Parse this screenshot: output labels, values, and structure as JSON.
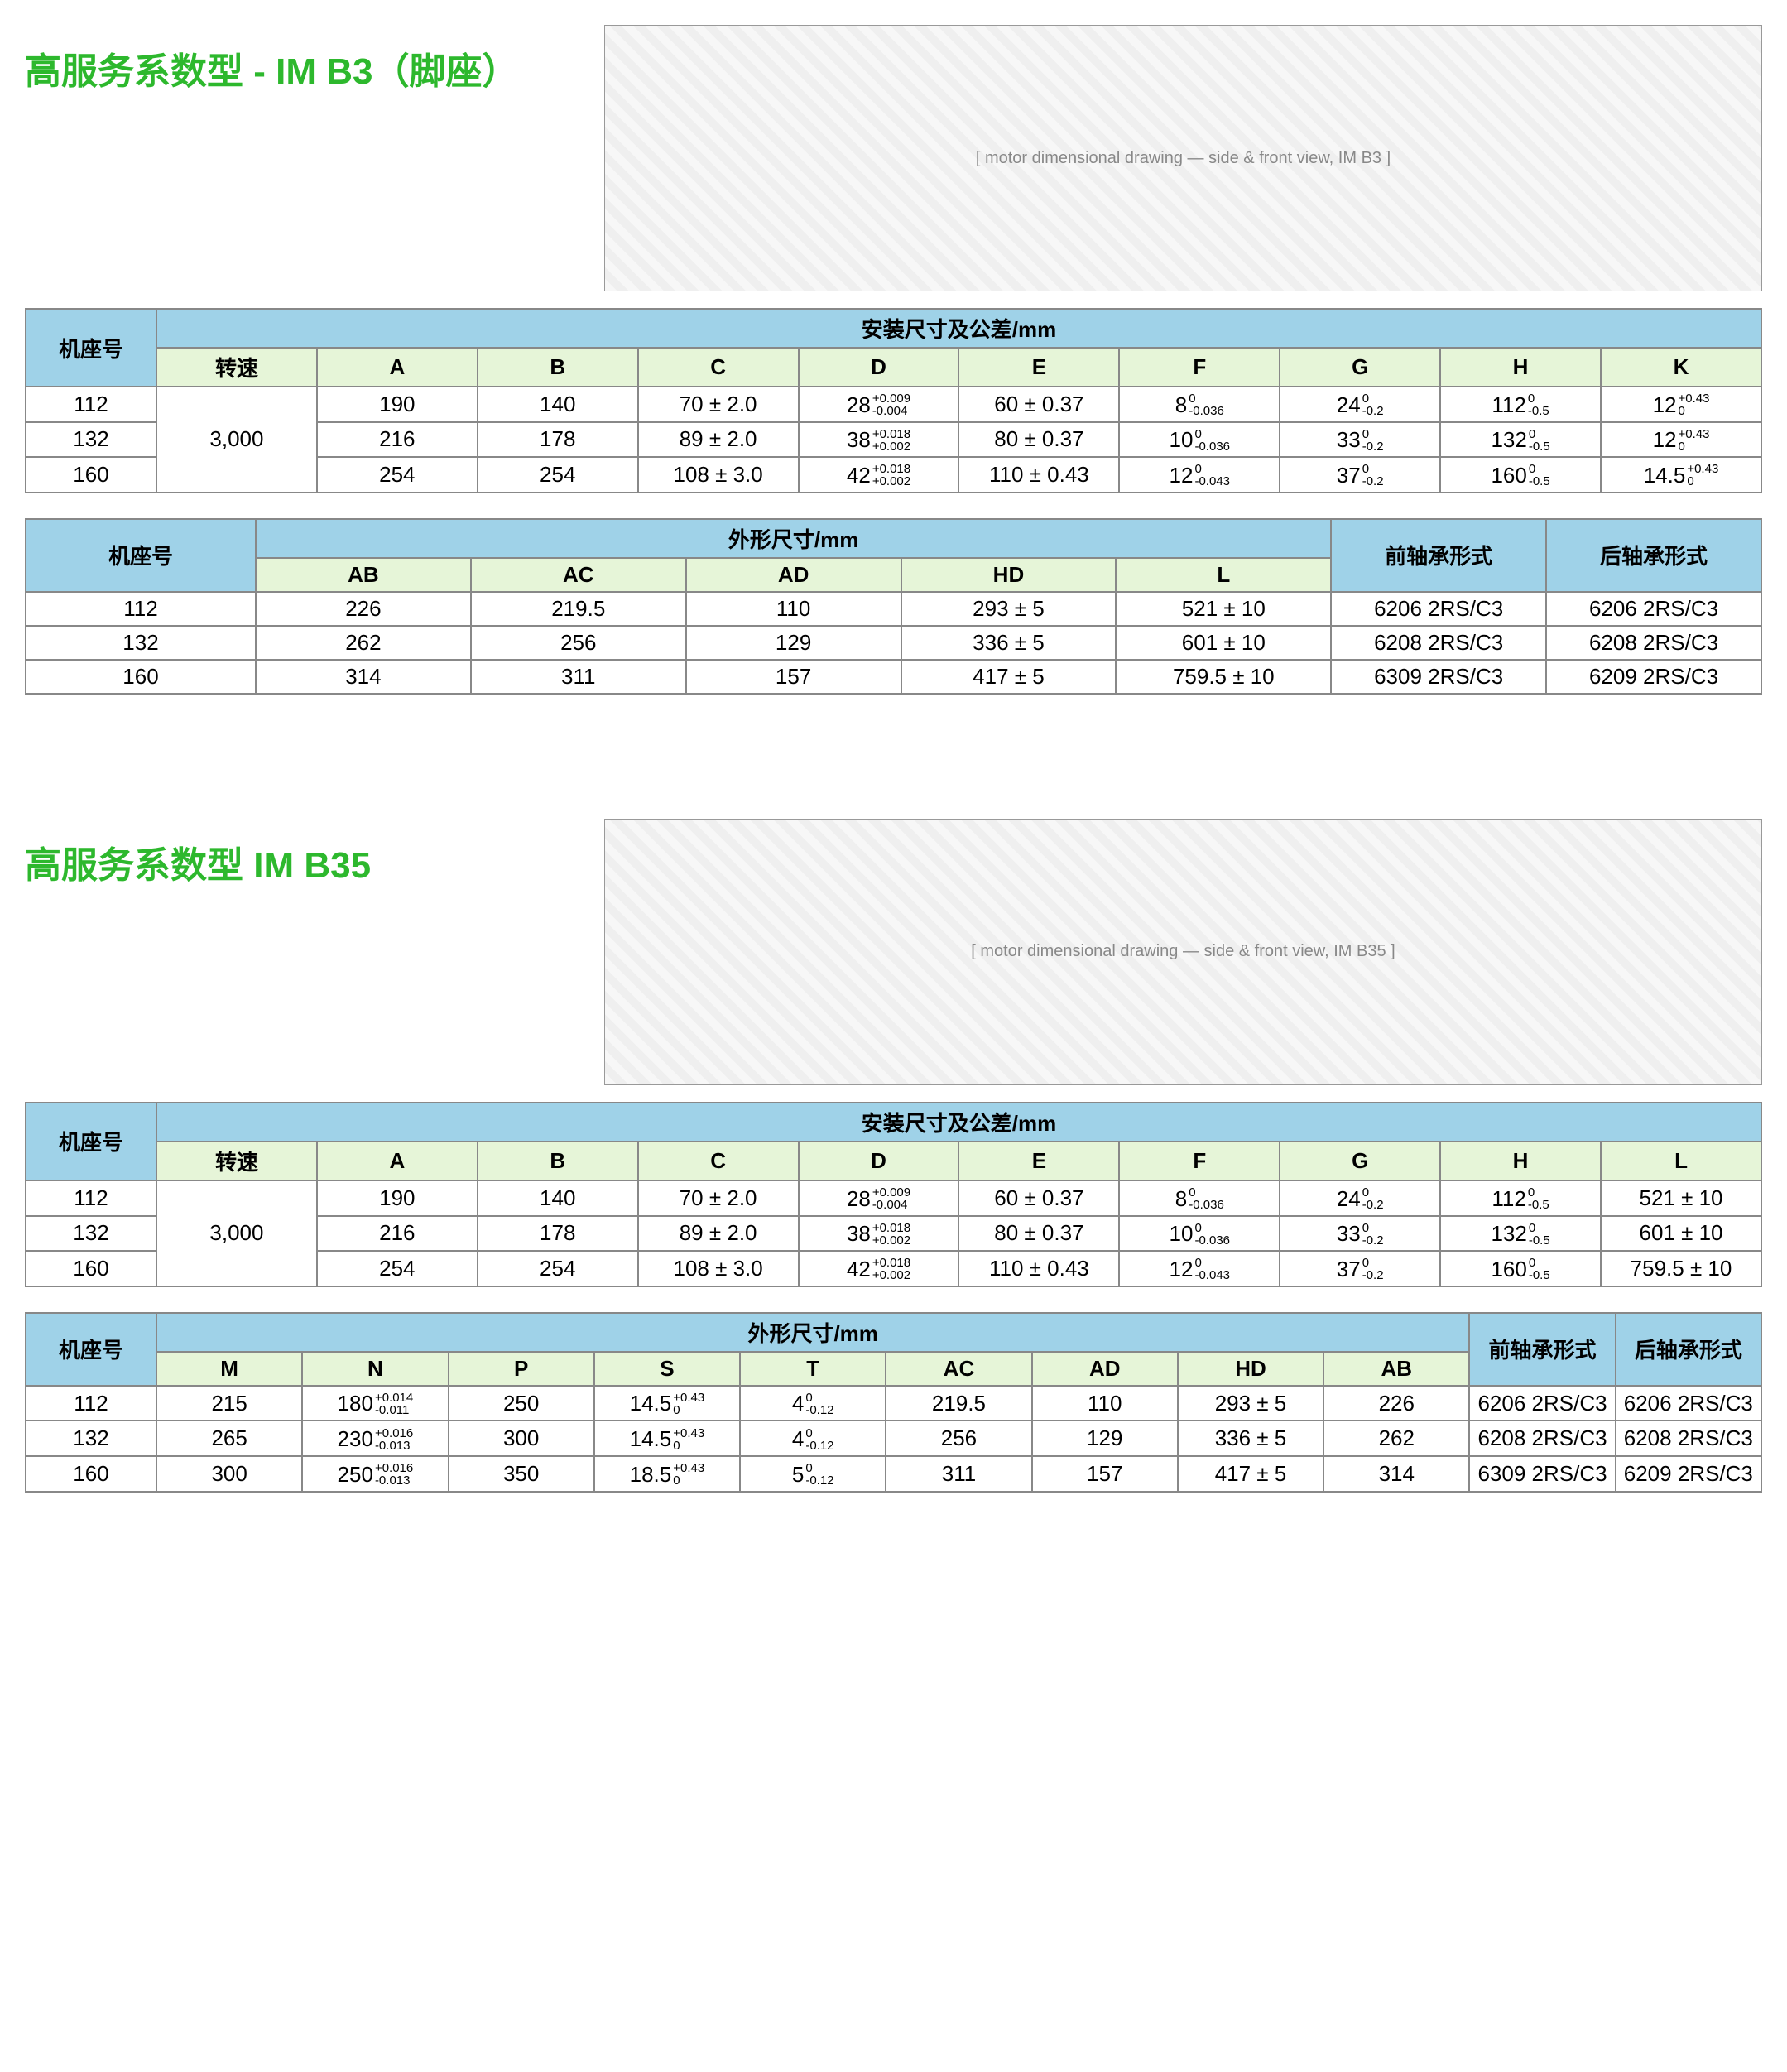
{
  "section1": {
    "title": "高服务系数型 - IM B3（脚座）",
    "diagram_label": "[ motor dimensional drawing — side & front view, IM B3 ]",
    "table1": {
      "group_title": "安装尺寸及公差/mm",
      "row_label": "机座号",
      "cols": [
        "转速",
        "A",
        "B",
        "C",
        "D",
        "E",
        "F",
        "G",
        "H",
        "K"
      ],
      "frames": [
        "112",
        "132",
        "160"
      ],
      "speed": "3,000",
      "rows": [
        {
          "A": "190",
          "B": "140",
          "C": "70 ± 2.0",
          "D": {
            "b": "28",
            "u": "+0.009",
            "l": "-0.004"
          },
          "E": "60 ± 0.37",
          "F": {
            "b": "8",
            "u": "0",
            "l": "-0.036"
          },
          "G": {
            "b": "24",
            "u": "0",
            "l": "-0.2"
          },
          "H": {
            "b": "112",
            "u": "0",
            "l": "-0.5"
          },
          "K": {
            "b": "12",
            "u": "+0.43",
            "l": "0"
          }
        },
        {
          "A": "216",
          "B": "178",
          "C": "89 ± 2.0",
          "D": {
            "b": "38",
            "u": "+0.018",
            "l": "+0.002"
          },
          "E": "80 ± 0.37",
          "F": {
            "b": "10",
            "u": "0",
            "l": "-0.036"
          },
          "G": {
            "b": "33",
            "u": "0",
            "l": "-0.2"
          },
          "H": {
            "b": "132",
            "u": "0",
            "l": "-0.5"
          },
          "K": {
            "b": "12",
            "u": "+0.43",
            "l": "0"
          }
        },
        {
          "A": "254",
          "B": "254",
          "C": "108 ± 3.0",
          "D": {
            "b": "42",
            "u": "+0.018",
            "l": "+0.002"
          },
          "E": "110 ± 0.43",
          "F": {
            "b": "12",
            "u": "0",
            "l": "-0.043"
          },
          "G": {
            "b": "37",
            "u": "0",
            "l": "-0.2"
          },
          "H": {
            "b": "160",
            "u": "0",
            "l": "-0.5"
          },
          "K": {
            "b": "14.5",
            "u": "+0.43",
            "l": "0"
          }
        }
      ]
    },
    "table2": {
      "group_title": "外形尺寸/mm",
      "row_label": "机座号",
      "cols": [
        "AB",
        "AC",
        "AD",
        "HD",
        "L",
        "前轴承形式",
        "后轴承形式"
      ],
      "frames": [
        "112",
        "132",
        "160"
      ],
      "rows": [
        [
          "226",
          "219.5",
          "110",
          "293 ± 5",
          "521 ± 10",
          "6206 2RS/C3",
          "6206 2RS/C3"
        ],
        [
          "262",
          "256",
          "129",
          "336 ± 5",
          "601 ± 10",
          "6208 2RS/C3",
          "6208 2RS/C3"
        ],
        [
          "314",
          "311",
          "157",
          "417 ± 5",
          "759.5 ± 10",
          "6309 2RS/C3",
          "6209 2RS/C3"
        ]
      ]
    }
  },
  "section2": {
    "title": "高服务系数型 IM B35",
    "diagram_label": "[ motor dimensional drawing — side & front view, IM B35 ]",
    "table1": {
      "group_title": "安装尺寸及公差/mm",
      "row_label": "机座号",
      "cols": [
        "转速",
        "A",
        "B",
        "C",
        "D",
        "E",
        "F",
        "G",
        "H",
        "L"
      ],
      "frames": [
        "112",
        "132",
        "160"
      ],
      "speed": "3,000",
      "rows": [
        {
          "A": "190",
          "B": "140",
          "C": "70 ± 2.0",
          "D": {
            "b": "28",
            "u": "+0.009",
            "l": "-0.004"
          },
          "E": "60 ± 0.37",
          "F": {
            "b": "8",
            "u": "0",
            "l": "-0.036"
          },
          "G": {
            "b": "24",
            "u": "0",
            "l": "-0.2"
          },
          "H": {
            "b": "112",
            "u": "0",
            "l": "-0.5"
          },
          "L": "521 ± 10"
        },
        {
          "A": "216",
          "B": "178",
          "C": "89 ± 2.0",
          "D": {
            "b": "38",
            "u": "+0.018",
            "l": "+0.002"
          },
          "E": "80 ± 0.37",
          "F": {
            "b": "10",
            "u": "0",
            "l": "-0.036"
          },
          "G": {
            "b": "33",
            "u": "0",
            "l": "-0.2"
          },
          "H": {
            "b": "132",
            "u": "0",
            "l": "-0.5"
          },
          "L": "601 ± 10"
        },
        {
          "A": "254",
          "B": "254",
          "C": "108 ± 3.0",
          "D": {
            "b": "42",
            "u": "+0.018",
            "l": "+0.002"
          },
          "E": "110 ± 0.43",
          "F": {
            "b": "12",
            "u": "0",
            "l": "-0.043"
          },
          "G": {
            "b": "37",
            "u": "0",
            "l": "-0.2"
          },
          "H": {
            "b": "160",
            "u": "0",
            "l": "-0.5"
          },
          "L": "759.5 ± 10"
        }
      ]
    },
    "table2": {
      "group_title": "外形尺寸/mm",
      "row_label": "机座号",
      "cols": [
        "M",
        "N",
        "P",
        "S",
        "T",
        "AC",
        "AD",
        "HD",
        "AB",
        "前轴承形式",
        "后轴承形式"
      ],
      "frames": [
        "112",
        "132",
        "160"
      ],
      "rows": [
        [
          {
            "t": "215"
          },
          {
            "b": "180",
            "u": "+0.014",
            "l": "-0.011"
          },
          {
            "t": "250"
          },
          {
            "b": "14.5",
            "u": "+0.43",
            "l": "0"
          },
          {
            "b": "4",
            "u": "0",
            "l": "-0.12"
          },
          {
            "t": "219.5"
          },
          {
            "t": "110"
          },
          {
            "t": "293 ± 5"
          },
          {
            "t": "226"
          },
          {
            "t": "6206 2RS/C3"
          },
          {
            "t": "6206 2RS/C3"
          }
        ],
        [
          {
            "t": "265"
          },
          {
            "b": "230",
            "u": "+0.016",
            "l": "-0.013"
          },
          {
            "t": "300"
          },
          {
            "b": "14.5",
            "u": "+0.43",
            "l": "0"
          },
          {
            "b": "4",
            "u": "0",
            "l": "-0.12"
          },
          {
            "t": "256"
          },
          {
            "t": "129"
          },
          {
            "t": "336 ± 5"
          },
          {
            "t": "262"
          },
          {
            "t": "6208 2RS/C3"
          },
          {
            "t": "6208 2RS/C3"
          }
        ],
        [
          {
            "t": "300"
          },
          {
            "b": "250",
            "u": "+0.016",
            "l": "-0.013"
          },
          {
            "t": "350"
          },
          {
            "b": "18.5",
            "u": "+0.43",
            "l": "0"
          },
          {
            "b": "5",
            "u": "0",
            "l": "-0.12"
          },
          {
            "t": "311"
          },
          {
            "t": "157"
          },
          {
            "t": "417 ± 5"
          },
          {
            "t": "314"
          },
          {
            "t": "6309 2RS/C3"
          },
          {
            "t": "6209 2RS/C3"
          }
        ]
      ]
    }
  },
  "colors": {
    "title": "#2db82d",
    "head_blue": "#9fd2e8",
    "head_green": "#e6f5d8",
    "border": "#888888"
  }
}
